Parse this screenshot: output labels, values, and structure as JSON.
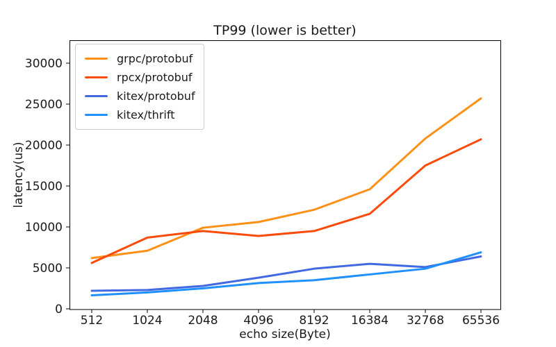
{
  "chart_data": {
    "type": "line",
    "title": "TP99 (lower is better)",
    "xlabel": "echo size(Byte)",
    "ylabel": "latency(us)",
    "categories": [
      "512",
      "1024",
      "2048",
      "4096",
      "8192",
      "16384",
      "32768",
      "65536"
    ],
    "series": [
      {
        "name": "grpc/protobuf",
        "color": "#ff9016",
        "values": [
          6200,
          7100,
          9900,
          10600,
          12100,
          14600,
          20800,
          25700
        ]
      },
      {
        "name": "rpcx/protobuf",
        "color": "#fa4b0a",
        "values": [
          5600,
          8700,
          9500,
          8900,
          9500,
          11600,
          17500,
          20700
        ]
      },
      {
        "name": "kitex/protobuf",
        "color": "#4169e1",
        "values": [
          2200,
          2300,
          2800,
          3800,
          4900,
          5500,
          5100,
          6400
        ]
      },
      {
        "name": "kitex/thrift",
        "color": "#1e90ff",
        "values": [
          1650,
          2000,
          2500,
          3150,
          3500,
          4200,
          4900,
          6900
        ]
      }
    ],
    "yticks": [
      0,
      5000,
      10000,
      15000,
      20000,
      25000,
      30000
    ],
    "ylim": [
      0,
      32700
    ],
    "grid": false,
    "legend_position": "upper left",
    "line_width": 3
  }
}
